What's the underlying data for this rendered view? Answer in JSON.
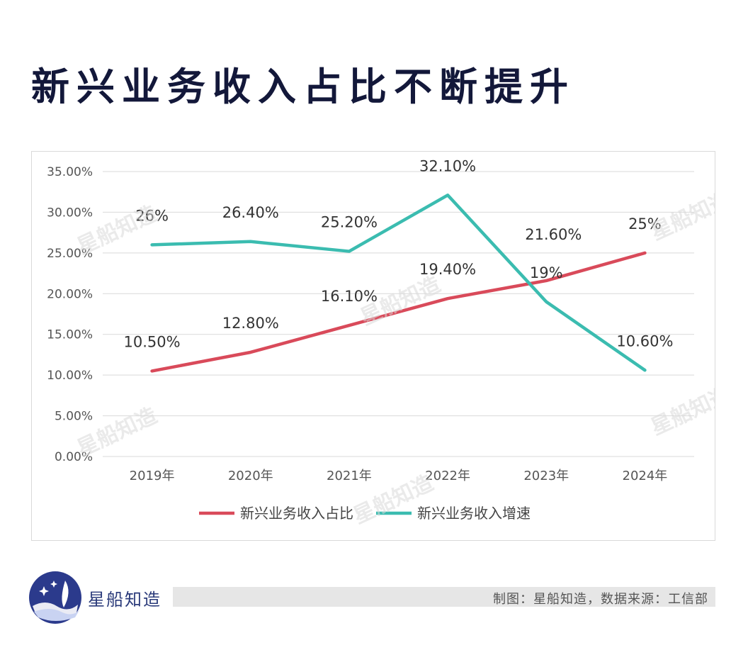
{
  "title": "新兴业务收入占比不断提升",
  "chart_data": {
    "type": "line",
    "categories": [
      "2019年",
      "2020年",
      "2021年",
      "2022年",
      "2023年",
      "2024年"
    ],
    "series": [
      {
        "name": "新兴业务收入占比",
        "values": [
          10.5,
          12.8,
          16.1,
          19.4,
          21.6,
          25.0
        ],
        "labels": [
          "10.50%",
          "12.80%",
          "16.10%",
          "19.40%",
          "21.60%",
          "25%"
        ],
        "color": "#d94a5a"
      },
      {
        "name": "新兴业务收入增速",
        "values": [
          26.0,
          26.4,
          25.2,
          32.1,
          19.0,
          10.6
        ],
        "labels": [
          "26%",
          "26.40%",
          "25.20%",
          "32.10%",
          "19%",
          "10.60%"
        ],
        "color": "#3bbcb0"
      }
    ],
    "yticks": [
      "0.00%",
      "5.00%",
      "10.00%",
      "15.00%",
      "20.00%",
      "25.00%",
      "30.00%",
      "35.00%"
    ],
    "ylim": [
      0,
      35
    ],
    "grid": true,
    "legend": "bottom"
  },
  "watermark": "星船知造",
  "footer": {
    "brand": "星船知造",
    "source": "制图：星船知造，数据来源：工信部"
  }
}
